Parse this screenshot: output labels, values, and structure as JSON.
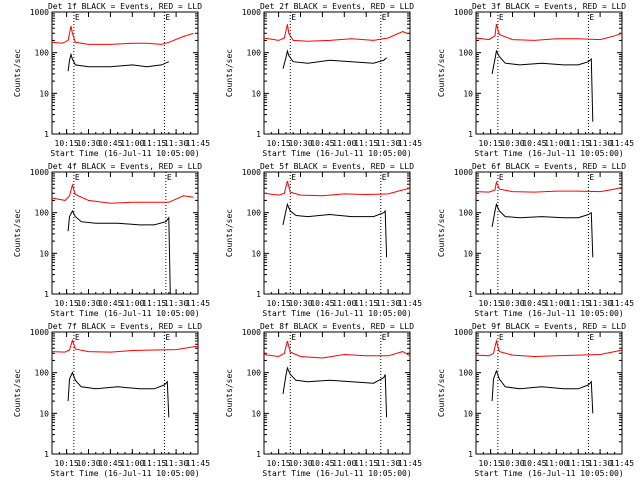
{
  "figure": {
    "ylabel": "Counts/sec",
    "xlabel": "Start Time (16-Jul-11 10:05:00)",
    "marker_label": "E"
  },
  "chart_data": [
    {
      "type": "line",
      "title": "Det 1f BLACK = Events, RED = LLD",
      "yscale": "log",
      "ylim": [
        1,
        1000
      ],
      "xlim": [
        "10:05",
        "11:45"
      ],
      "xticks": [
        "10:15",
        "10:30",
        "10:45",
        "11:00",
        "11:15",
        "11:30",
        "11:45"
      ],
      "yticks": [
        "1",
        "10",
        "100",
        "1000"
      ],
      "event_markers": [
        "10:20",
        "11:22"
      ],
      "series": [
        {
          "name": "RED = LLD",
          "color": "#ff0000",
          "x": [
            "10:05",
            "10:12",
            "10:16",
            "10:18",
            "10:19",
            "10:21",
            "10:30",
            "10:45",
            "11:00",
            "11:10",
            "11:20",
            "11:25",
            "11:35",
            "11:42"
          ],
          "values": [
            180,
            170,
            200,
            450,
            300,
            180,
            160,
            160,
            170,
            170,
            160,
            180,
            250,
            300
          ]
        },
        {
          "name": "BLACK = Events",
          "color": "#000000",
          "x": [
            "10:16",
            "10:17",
            "10:18",
            "10:19",
            "10:21",
            "10:30",
            "10:45",
            "11:00",
            "11:10",
            "11:20",
            "11:25"
          ],
          "values": [
            35,
            65,
            90,
            70,
            50,
            45,
            45,
            50,
            45,
            50,
            60
          ]
        }
      ]
    },
    {
      "type": "line",
      "title": "Det 2f BLACK = Events, RED = LLD",
      "yscale": "log",
      "ylim": [
        1,
        1000
      ],
      "xlim": [
        "10:05",
        "11:45"
      ],
      "xticks": [
        "10:15",
        "10:30",
        "10:45",
        "11:00",
        "11:15",
        "11:30",
        "11:45"
      ],
      "yticks": [
        "1",
        "10",
        "100",
        "1000"
      ],
      "event_markers": [
        "10:23",
        "11:25"
      ],
      "series": [
        {
          "name": "RED = LLD",
          "color": "#ff0000",
          "x": [
            "10:05",
            "10:15",
            "10:19",
            "10:21",
            "10:22",
            "10:25",
            "10:35",
            "10:50",
            "11:05",
            "11:20",
            "11:30",
            "11:40",
            "11:43"
          ],
          "values": [
            230,
            200,
            230,
            500,
            300,
            200,
            190,
            200,
            220,
            200,
            230,
            330,
            300
          ]
        },
        {
          "name": "BLACK = Events",
          "color": "#000000",
          "x": [
            "10:18",
            "10:20",
            "10:21",
            "10:22",
            "10:25",
            "10:35",
            "10:50",
            "11:05",
            "11:20",
            "11:27",
            "11:29"
          ],
          "values": [
            40,
            75,
            110,
            85,
            60,
            55,
            65,
            60,
            55,
            65,
            75
          ]
        }
      ]
    },
    {
      "type": "line",
      "title": "Det 3f BLACK = Events, RED = LLD",
      "yscale": "log",
      "ylim": [
        1,
        1000
      ],
      "xlim": [
        "10:05",
        "11:45"
      ],
      "xticks": [
        "10:15",
        "10:30",
        "10:45",
        "11:00",
        "11:15",
        "11:30",
        "11:45"
      ],
      "yticks": [
        "1",
        "10",
        "100",
        "1000"
      ],
      "event_markers": [
        "10:20",
        "11:22"
      ],
      "series": [
        {
          "name": "RED = LLD",
          "color": "#ff0000",
          "x": [
            "10:05",
            "10:14",
            "10:18",
            "10:19",
            "10:21",
            "10:30",
            "10:45",
            "11:00",
            "11:15",
            "11:30",
            "11:40",
            "11:45"
          ],
          "values": [
            230,
            210,
            260,
            500,
            280,
            210,
            200,
            220,
            220,
            210,
            260,
            300
          ]
        },
        {
          "name": "BLACK = Events",
          "color": "#000000",
          "x": [
            "10:16",
            "10:18",
            "10:19",
            "10:21",
            "10:25",
            "10:35",
            "10:50",
            "11:05",
            "11:15",
            "11:22",
            "11:24",
            "11:25"
          ],
          "values": [
            30,
            70,
            110,
            80,
            55,
            50,
            55,
            50,
            50,
            60,
            70,
            2
          ]
        }
      ]
    },
    {
      "type": "line",
      "title": "Det 4f BLACK = Events, RED = LLD",
      "yscale": "log",
      "ylim": [
        1,
        1000
      ],
      "xlim": [
        "10:05",
        "11:45"
      ],
      "xticks": [
        "10:15",
        "10:30",
        "10:45",
        "11:00",
        "11:15",
        "11:30",
        "11:45"
      ],
      "yticks": [
        "1",
        "10",
        "100",
        "1000"
      ],
      "event_markers": [
        "10:20",
        "11:23"
      ],
      "series": [
        {
          "name": "RED = LLD",
          "color": "#ff0000",
          "x": [
            "10:05",
            "10:14",
            "10:17",
            "10:19",
            "10:21",
            "10:30",
            "10:45",
            "11:00",
            "11:15",
            "11:25",
            "11:35",
            "11:42"
          ],
          "values": [
            230,
            200,
            260,
            480,
            280,
            200,
            170,
            180,
            180,
            180,
            260,
            240
          ]
        },
        {
          "name": "BLACK = Events",
          "color": "#000000",
          "x": [
            "10:16",
            "10:17",
            "10:19",
            "10:21",
            "10:25",
            "10:35",
            "10:50",
            "11:05",
            "11:15",
            "11:23",
            "11:25",
            "11:26"
          ],
          "values": [
            35,
            80,
            110,
            80,
            60,
            55,
            55,
            50,
            50,
            60,
            75,
            1
          ]
        }
      ]
    },
    {
      "type": "line",
      "title": "Det 5f BLACK = Events, RED = LLD",
      "yscale": "log",
      "ylim": [
        1,
        1000
      ],
      "xlim": [
        "10:05",
        "11:45"
      ],
      "xticks": [
        "10:15",
        "10:30",
        "10:45",
        "11:00",
        "11:15",
        "11:30",
        "11:45"
      ],
      "yticks": [
        "1",
        "10",
        "100",
        "1000"
      ],
      "event_markers": [
        "10:23",
        "11:25"
      ],
      "series": [
        {
          "name": "RED = LLD",
          "color": "#ff0000",
          "x": [
            "10:05",
            "10:15",
            "10:19",
            "10:21",
            "10:23",
            "10:30",
            "10:45",
            "11:00",
            "11:15",
            "11:30",
            "11:40",
            "11:45"
          ],
          "values": [
            300,
            270,
            300,
            600,
            320,
            270,
            260,
            290,
            280,
            290,
            360,
            400
          ]
        },
        {
          "name": "BLACK = Events",
          "color": "#000000",
          "x": [
            "10:18",
            "10:20",
            "10:21",
            "10:23",
            "10:27",
            "10:35",
            "10:50",
            "11:05",
            "11:20",
            "11:27",
            "11:28",
            "11:29"
          ],
          "values": [
            50,
            110,
            160,
            110,
            85,
            80,
            90,
            80,
            80,
            100,
            110,
            8
          ]
        }
      ]
    },
    {
      "type": "line",
      "title": "Det 6f BLACK = Events, RED = LLD",
      "yscale": "log",
      "ylim": [
        1,
        1000
      ],
      "xlim": [
        "10:05",
        "11:45"
      ],
      "xticks": [
        "10:15",
        "10:30",
        "10:45",
        "11:00",
        "11:15",
        "11:30",
        "11:45"
      ],
      "yticks": [
        "1",
        "10",
        "100",
        "1000"
      ],
      "event_markers": [
        "10:20",
        "11:22"
      ],
      "series": [
        {
          "name": "RED = LLD",
          "color": "#ff0000",
          "x": [
            "10:05",
            "10:14",
            "10:18",
            "10:19",
            "10:21",
            "10:30",
            "10:45",
            "11:00",
            "11:15",
            "11:30",
            "11:40",
            "11:45"
          ],
          "values": [
            330,
            320,
            360,
            560,
            380,
            330,
            320,
            340,
            340,
            330,
            380,
            420
          ]
        },
        {
          "name": "BLACK = Events",
          "color": "#000000",
          "x": [
            "10:16",
            "10:18",
            "10:19",
            "10:21",
            "10:25",
            "10:35",
            "10:50",
            "11:05",
            "11:15",
            "11:22",
            "11:24",
            "11:25"
          ],
          "values": [
            45,
            110,
            160,
            110,
            80,
            75,
            80,
            75,
            75,
            90,
            100,
            8
          ]
        }
      ]
    },
    {
      "type": "line",
      "title": "Det 7f BLACK = Events, RED = LLD",
      "yscale": "log",
      "ylim": [
        1,
        1000
      ],
      "xlim": [
        "10:05",
        "11:45"
      ],
      "xticks": [
        "10:15",
        "10:30",
        "10:45",
        "11:00",
        "11:15",
        "11:30",
        "11:45"
      ],
      "yticks": [
        "1",
        "10",
        "100",
        "1000"
      ],
      "event_markers": [
        "10:20",
        "11:22"
      ],
      "series": [
        {
          "name": "RED = LLD",
          "color": "#ff0000",
          "x": [
            "10:05",
            "10:14",
            "10:17",
            "10:19",
            "10:21",
            "10:30",
            "10:45",
            "11:00",
            "11:15",
            "11:30",
            "11:40",
            "11:45"
          ],
          "values": [
            330,
            320,
            360,
            620,
            380,
            330,
            320,
            350,
            360,
            370,
            420,
            450
          ]
        },
        {
          "name": "BLACK = Events",
          "color": "#000000",
          "x": [
            "10:16",
            "10:17",
            "10:19",
            "10:21",
            "10:25",
            "10:35",
            "10:50",
            "11:05",
            "11:15",
            "11:22",
            "11:24",
            "11:25"
          ],
          "values": [
            20,
            70,
            100,
            65,
            45,
            40,
            45,
            40,
            40,
            50,
            60,
            8
          ]
        }
      ]
    },
    {
      "type": "line",
      "title": "Det 8f BLACK = Events, RED = LLD",
      "yscale": "log",
      "ylim": [
        1,
        1000
      ],
      "xlim": [
        "10:05",
        "11:45"
      ],
      "xticks": [
        "10:15",
        "10:30",
        "10:45",
        "11:00",
        "11:15",
        "11:30",
        "11:45"
      ],
      "yticks": [
        "1",
        "10",
        "100",
        "1000"
      ],
      "event_markers": [
        "10:23",
        "11:25"
      ],
      "series": [
        {
          "name": "RED = LLD",
          "color": "#ff0000",
          "x": [
            "10:05",
            "10:15",
            "10:19",
            "10:21",
            "10:23",
            "10:30",
            "10:45",
            "11:00",
            "11:15",
            "11:30",
            "11:40",
            "11:45"
          ],
          "values": [
            280,
            250,
            300,
            600,
            320,
            250,
            230,
            280,
            260,
            260,
            330,
            260
          ]
        },
        {
          "name": "BLACK = Events",
          "color": "#000000",
          "x": [
            "10:18",
            "10:20",
            "10:21",
            "10:23",
            "10:27",
            "10:35",
            "10:50",
            "11:05",
            "11:20",
            "11:27",
            "11:28",
            "11:29"
          ],
          "values": [
            30,
            85,
            130,
            90,
            65,
            60,
            65,
            60,
            55,
            75,
            90,
            8
          ]
        }
      ]
    },
    {
      "type": "line",
      "title": "Det 9f BLACK = Events, RED = LLD",
      "yscale": "log",
      "ylim": [
        1,
        1000
      ],
      "xlim": [
        "10:05",
        "11:45"
      ],
      "xticks": [
        "10:15",
        "10:30",
        "10:45",
        "11:00",
        "11:15",
        "11:30",
        "11:45"
      ],
      "yticks": [
        "1",
        "10",
        "100",
        "1000"
      ],
      "event_markers": [
        "10:20",
        "11:22"
      ],
      "series": [
        {
          "name": "RED = LLD",
          "color": "#ff0000",
          "x": [
            "10:05",
            "10:14",
            "10:17",
            "10:19",
            "10:21",
            "10:30",
            "10:45",
            "11:00",
            "11:15",
            "11:30",
            "11:40",
            "11:45"
          ],
          "values": [
            270,
            260,
            300,
            600,
            330,
            270,
            250,
            260,
            270,
            280,
            330,
            360
          ]
        },
        {
          "name": "BLACK = Events",
          "color": "#000000",
          "x": [
            "10:16",
            "10:17",
            "10:19",
            "10:21",
            "10:25",
            "10:35",
            "10:50",
            "11:05",
            "11:15",
            "11:22",
            "11:24",
            "11:25"
          ],
          "values": [
            20,
            70,
            110,
            70,
            45,
            40,
            45,
            40,
            40,
            50,
            60,
            10
          ]
        }
      ]
    }
  ]
}
